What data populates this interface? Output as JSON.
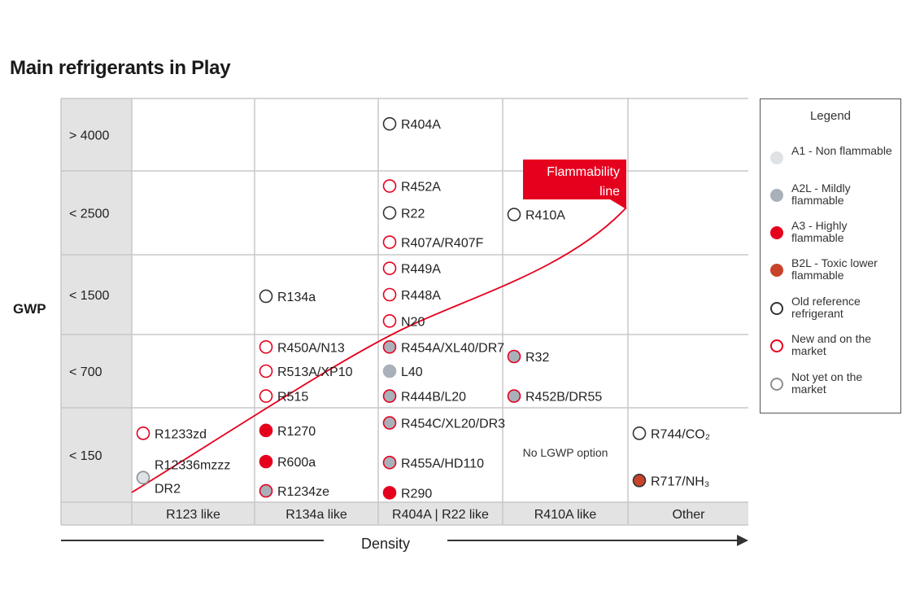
{
  "title": "Main refrigerants in Play",
  "y_axis_label": "GWP",
  "x_axis_label": "Density",
  "colors": {
    "A1": "#dfe2e5",
    "A2L": "#a8b1ba",
    "A3": "#e5001e",
    "B2L": "#c8432a",
    "old_outline": "#333333",
    "new_outline": "#e5001e",
    "notyet_outline": "#8e8e8e",
    "flammability": "#e5001e",
    "grid": "#c8c8c8",
    "header_fill": "#e3e3e3"
  },
  "legend": {
    "title": "Legend",
    "items": [
      {
        "label": "A1 - Non flammable",
        "fill": "#dfe2e5",
        "stroke": "#dfe2e5"
      },
      {
        "label": "A2L - Mildly flammable",
        "fill": "#a8b1ba",
        "stroke": "#a8b1ba"
      },
      {
        "label": "A3 - Highly flammable",
        "fill": "#e5001e",
        "stroke": "#e5001e"
      },
      {
        "label": "B2L - Toxic lower flammable",
        "fill": "#c8432a",
        "stroke": "#c8432a"
      },
      {
        "label": "Old reference refrigerant",
        "fill": "#ffffff",
        "stroke": "#333333"
      },
      {
        "label": "New and on the market",
        "fill": "#ffffff",
        "stroke": "#e5001e"
      },
      {
        "label": "Not yet on the market",
        "fill": "#ffffff",
        "stroke": "#8e8e8e"
      }
    ]
  },
  "chart_data": {
    "type": "table",
    "title": "Main refrigerants in Play",
    "xlabel": "Density",
    "ylabel": "GWP",
    "columns": [
      "R123 like",
      "R134a like",
      "R404A | R22 like",
      "R410A like",
      "Other"
    ],
    "rows": [
      "> 4000",
      "< 2500",
      "< 1500",
      "< 700",
      "< 150"
    ],
    "flammability_line_label": "Flammability line",
    "notes": [
      {
        "row": 4,
        "col": 3,
        "text": "No LGWP option"
      }
    ],
    "refrigerants": [
      {
        "name": "R404A",
        "row": 0,
        "col": 2,
        "slot": 0.35,
        "fill": "#ffffff",
        "stroke": "#333333"
      },
      {
        "name": "R452A",
        "row": 1,
        "col": 2,
        "slot": 0.18,
        "fill": "#ffffff",
        "stroke": "#e5001e"
      },
      {
        "name": "R22",
        "row": 1,
        "col": 2,
        "slot": 0.5,
        "fill": "#ffffff",
        "stroke": "#333333"
      },
      {
        "name": "R407A/R407F",
        "row": 1,
        "col": 2,
        "slot": 0.85,
        "fill": "#ffffff",
        "stroke": "#e5001e"
      },
      {
        "name": "R410A",
        "row": 1,
        "col": 3,
        "slot": 0.52,
        "fill": "#ffffff",
        "stroke": "#333333"
      },
      {
        "name": "R134a",
        "row": 2,
        "col": 1,
        "slot": 0.52,
        "fill": "#ffffff",
        "stroke": "#333333"
      },
      {
        "name": "R449A",
        "row": 2,
        "col": 2,
        "slot": 0.17,
        "fill": "#ffffff",
        "stroke": "#e5001e"
      },
      {
        "name": "R448A",
        "row": 2,
        "col": 2,
        "slot": 0.5,
        "fill": "#ffffff",
        "stroke": "#e5001e"
      },
      {
        "name": "N20",
        "row": 2,
        "col": 2,
        "slot": 0.83,
        "fill": "#ffffff",
        "stroke": "#e5001e"
      },
      {
        "name": "R450A/N13",
        "row": 3,
        "col": 1,
        "slot": 0.17,
        "fill": "#ffffff",
        "stroke": "#e5001e"
      },
      {
        "name": "R513A/XP10",
        "row": 3,
        "col": 1,
        "slot": 0.5,
        "fill": "#ffffff",
        "stroke": "#e5001e"
      },
      {
        "name": "R515",
        "row": 3,
        "col": 1,
        "slot": 0.84,
        "fill": "#ffffff",
        "stroke": "#e5001e"
      },
      {
        "name": "R454A/XL40/DR7",
        "row": 3,
        "col": 2,
        "slot": 0.17,
        "fill": "#a8b1ba",
        "stroke": "#e5001e"
      },
      {
        "name": "L40",
        "row": 3,
        "col": 2,
        "slot": 0.5,
        "fill": "#a8b1ba",
        "stroke": "#a8b1ba"
      },
      {
        "name": "R444B/L20",
        "row": 3,
        "col": 2,
        "slot": 0.84,
        "fill": "#a8b1ba",
        "stroke": "#e5001e"
      },
      {
        "name": "R32",
        "row": 3,
        "col": 3,
        "slot": 0.3,
        "fill": "#a8b1ba",
        "stroke": "#e5001e"
      },
      {
        "name": "R452B/DR55",
        "row": 3,
        "col": 3,
        "slot": 0.84,
        "fill": "#a8b1ba",
        "stroke": "#e5001e"
      },
      {
        "name": "R1233zd",
        "row": 4,
        "col": 0,
        "slot": 0.27,
        "fill": "#ffffff",
        "stroke": "#e5001e"
      },
      {
        "name": "R12336mzzz",
        "row": 4,
        "col": 0,
        "slot": 0.6,
        "fill": "#dfe2e5",
        "stroke": "#8e8e8e",
        "dot_offset": 0.14
      },
      {
        "name": "DR2",
        "row": 4,
        "col": 0,
        "slot": 0.85,
        "text_only": true
      },
      {
        "name": "R1270",
        "row": 4,
        "col": 1,
        "slot": 0.24,
        "fill": "#e5001e",
        "stroke": "#e5001e"
      },
      {
        "name": "R600a",
        "row": 4,
        "col": 1,
        "slot": 0.57,
        "fill": "#e5001e",
        "stroke": "#e5001e"
      },
      {
        "name": "R1234ze",
        "row": 4,
        "col": 1,
        "slot": 0.88,
        "fill": "#a8b1ba",
        "stroke": "#e5001e"
      },
      {
        "name": "R454C/XL20/DR3",
        "row": 4,
        "col": 2,
        "slot": 0.16,
        "fill": "#a8b1ba",
        "stroke": "#e5001e"
      },
      {
        "name": "R455A/HD110",
        "row": 4,
        "col": 2,
        "slot": 0.58,
        "fill": "#a8b1ba",
        "stroke": "#e5001e"
      },
      {
        "name": "R290",
        "row": 4,
        "col": 2,
        "slot": 0.9,
        "fill": "#e5001e",
        "stroke": "#e5001e"
      },
      {
        "name": "R744/CO₂",
        "row": 4,
        "col": 4,
        "slot": 0.27,
        "fill": "#ffffff",
        "stroke": "#333333"
      },
      {
        "name": "R717/NH₃",
        "row": 4,
        "col": 4,
        "slot": 0.77,
        "fill": "#c8432a",
        "stroke": "#333333"
      }
    ]
  }
}
